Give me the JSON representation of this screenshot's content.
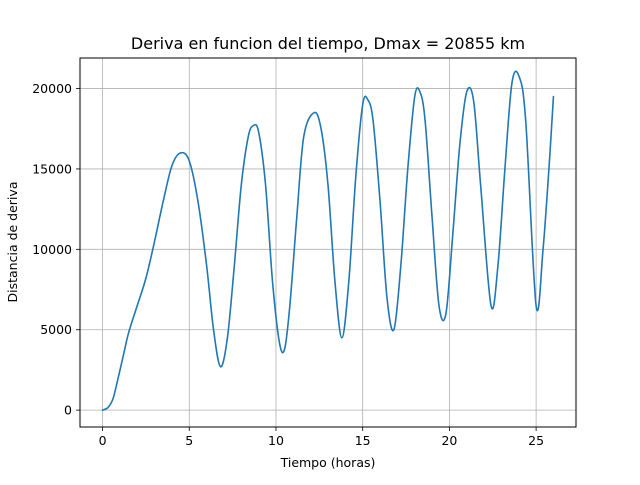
{
  "chart_data": {
    "type": "line",
    "title": "Deriva en funcion del tiempo, Dmax = 20855 km",
    "xlabel": "Tiempo (horas)",
    "ylabel": "Distancia de deriva",
    "xlim": [
      -1.3,
      27.3
    ],
    "ylim": [
      -1050,
      21900
    ],
    "xticks": [
      0,
      5,
      10,
      15,
      20,
      25
    ],
    "yticks": [
      0,
      5000,
      10000,
      15000,
      20000
    ],
    "xtick_labels": [
      "0",
      "5",
      "10",
      "15",
      "20",
      "25"
    ],
    "ytick_labels": [
      "0",
      "5000",
      "10000",
      "15000",
      "20000"
    ],
    "grid": true,
    "line_color": "#1f77b4",
    "grid_color": "#b0b0b0",
    "series": [
      {
        "x": [
          0,
          0.3,
          0.6,
          0.9,
          1.2,
          1.5,
          2.0,
          2.5,
          3.0,
          3.5,
          4.0,
          4.5,
          5.0,
          5.5,
          6.0,
          6.4,
          6.8,
          7.2,
          7.6,
          8.0,
          8.4,
          8.7,
          9.0,
          9.4,
          9.8,
          10.2,
          10.5,
          10.8,
          11.2,
          11.6,
          12.2,
          12.6,
          13.0,
          13.4,
          13.8,
          14.2,
          14.6,
          15.0,
          15.3,
          15.6,
          16.0,
          16.4,
          16.8,
          17.2,
          17.6,
          18.0,
          18.3,
          18.6,
          19.0,
          19.4,
          19.8,
          20.2,
          20.6,
          21.0,
          21.4,
          21.8,
          22.4,
          22.8,
          23.2,
          23.6,
          24.0,
          24.4,
          25.0,
          25.4,
          25.8,
          26.0
        ],
        "y": [
          0,
          150,
          700,
          2000,
          3400,
          4800,
          6500,
          8200,
          10500,
          13000,
          15200,
          16000,
          15500,
          13000,
          9000,
          5000,
          2700,
          4500,
          9000,
          14000,
          17000,
          17700,
          17300,
          14000,
          8000,
          4200,
          3800,
          6500,
          12000,
          17000,
          18500,
          17500,
          14000,
          8000,
          4500,
          8000,
          14500,
          19000,
          19300,
          18000,
          13000,
          7000,
          5000,
          9000,
          15000,
          19500,
          19800,
          18000,
          12000,
          6500,
          6000,
          11000,
          16500,
          19800,
          19200,
          14000,
          6500,
          9000,
          15000,
          20300,
          20800,
          18000,
          6500,
          10000,
          16000,
          19500
        ]
      }
    ]
  }
}
